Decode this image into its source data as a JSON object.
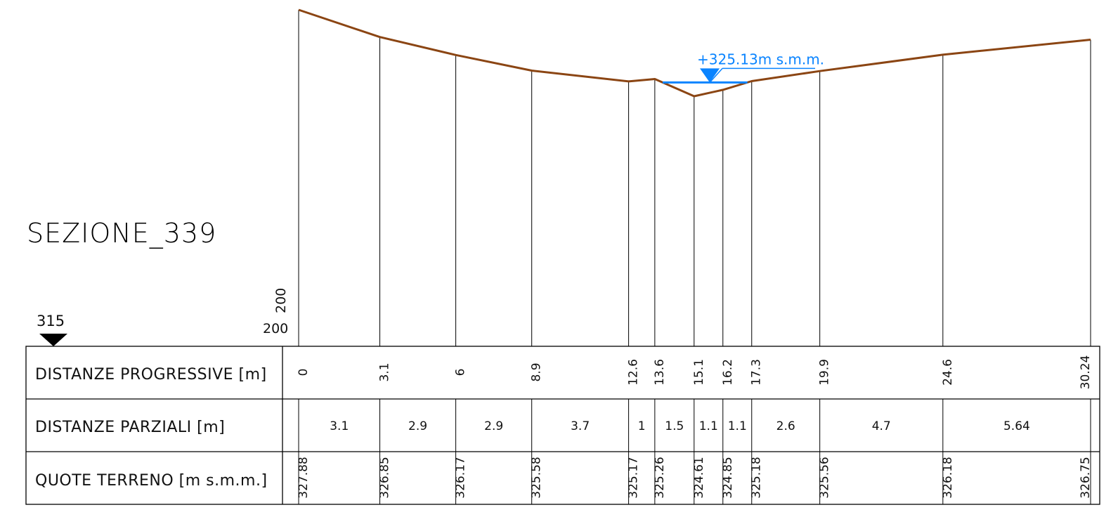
{
  "title": "SEZIONE_339",
  "datum": {
    "quota": "315",
    "scale_h": "200",
    "scale_v": "200"
  },
  "water_level": {
    "label": "+325.13m s.m.m.",
    "value": 325.13
  },
  "colors": {
    "terrain": "#8b4513",
    "water": "#0a84ff",
    "grid": "#000000"
  },
  "rows": {
    "progressive_label": "DISTANZE PROGRESSIVE [m]",
    "partial_label": "DISTANZE PARZIALI [m]",
    "elevation_label": "QUOTE TERRENO [m s.m.m.]"
  },
  "stations": [
    {
      "x": 0,
      "progressive": "0",
      "elevation": "327.88"
    },
    {
      "x": 3.1,
      "progressive": "3.1",
      "elevation": "326.85"
    },
    {
      "x": 6,
      "progressive": "6",
      "elevation": "326.17"
    },
    {
      "x": 8.9,
      "progressive": "8.9",
      "elevation": "325.58"
    },
    {
      "x": 12.6,
      "progressive": "12.6",
      "elevation": "325.17"
    },
    {
      "x": 13.6,
      "progressive": "13.6",
      "elevation": "325.26"
    },
    {
      "x": 15.1,
      "progressive": "15.1",
      "elevation": "324.61"
    },
    {
      "x": 16.2,
      "progressive": "16.2",
      "elevation": "324.85"
    },
    {
      "x": 17.3,
      "progressive": "17.3",
      "elevation": "325.18"
    },
    {
      "x": 19.9,
      "progressive": "19.9",
      "elevation": "325.56"
    },
    {
      "x": 24.6,
      "progressive": "24.6",
      "elevation": "326.18"
    },
    {
      "x": 30.24,
      "progressive": "30.24",
      "elevation": "326.75"
    }
  ],
  "partials": [
    "3.1",
    "2.9",
    "2.9",
    "3.7",
    "1",
    "1.5",
    "1.1",
    "1.1",
    "2.6",
    "4.7",
    "5.64"
  ]
}
